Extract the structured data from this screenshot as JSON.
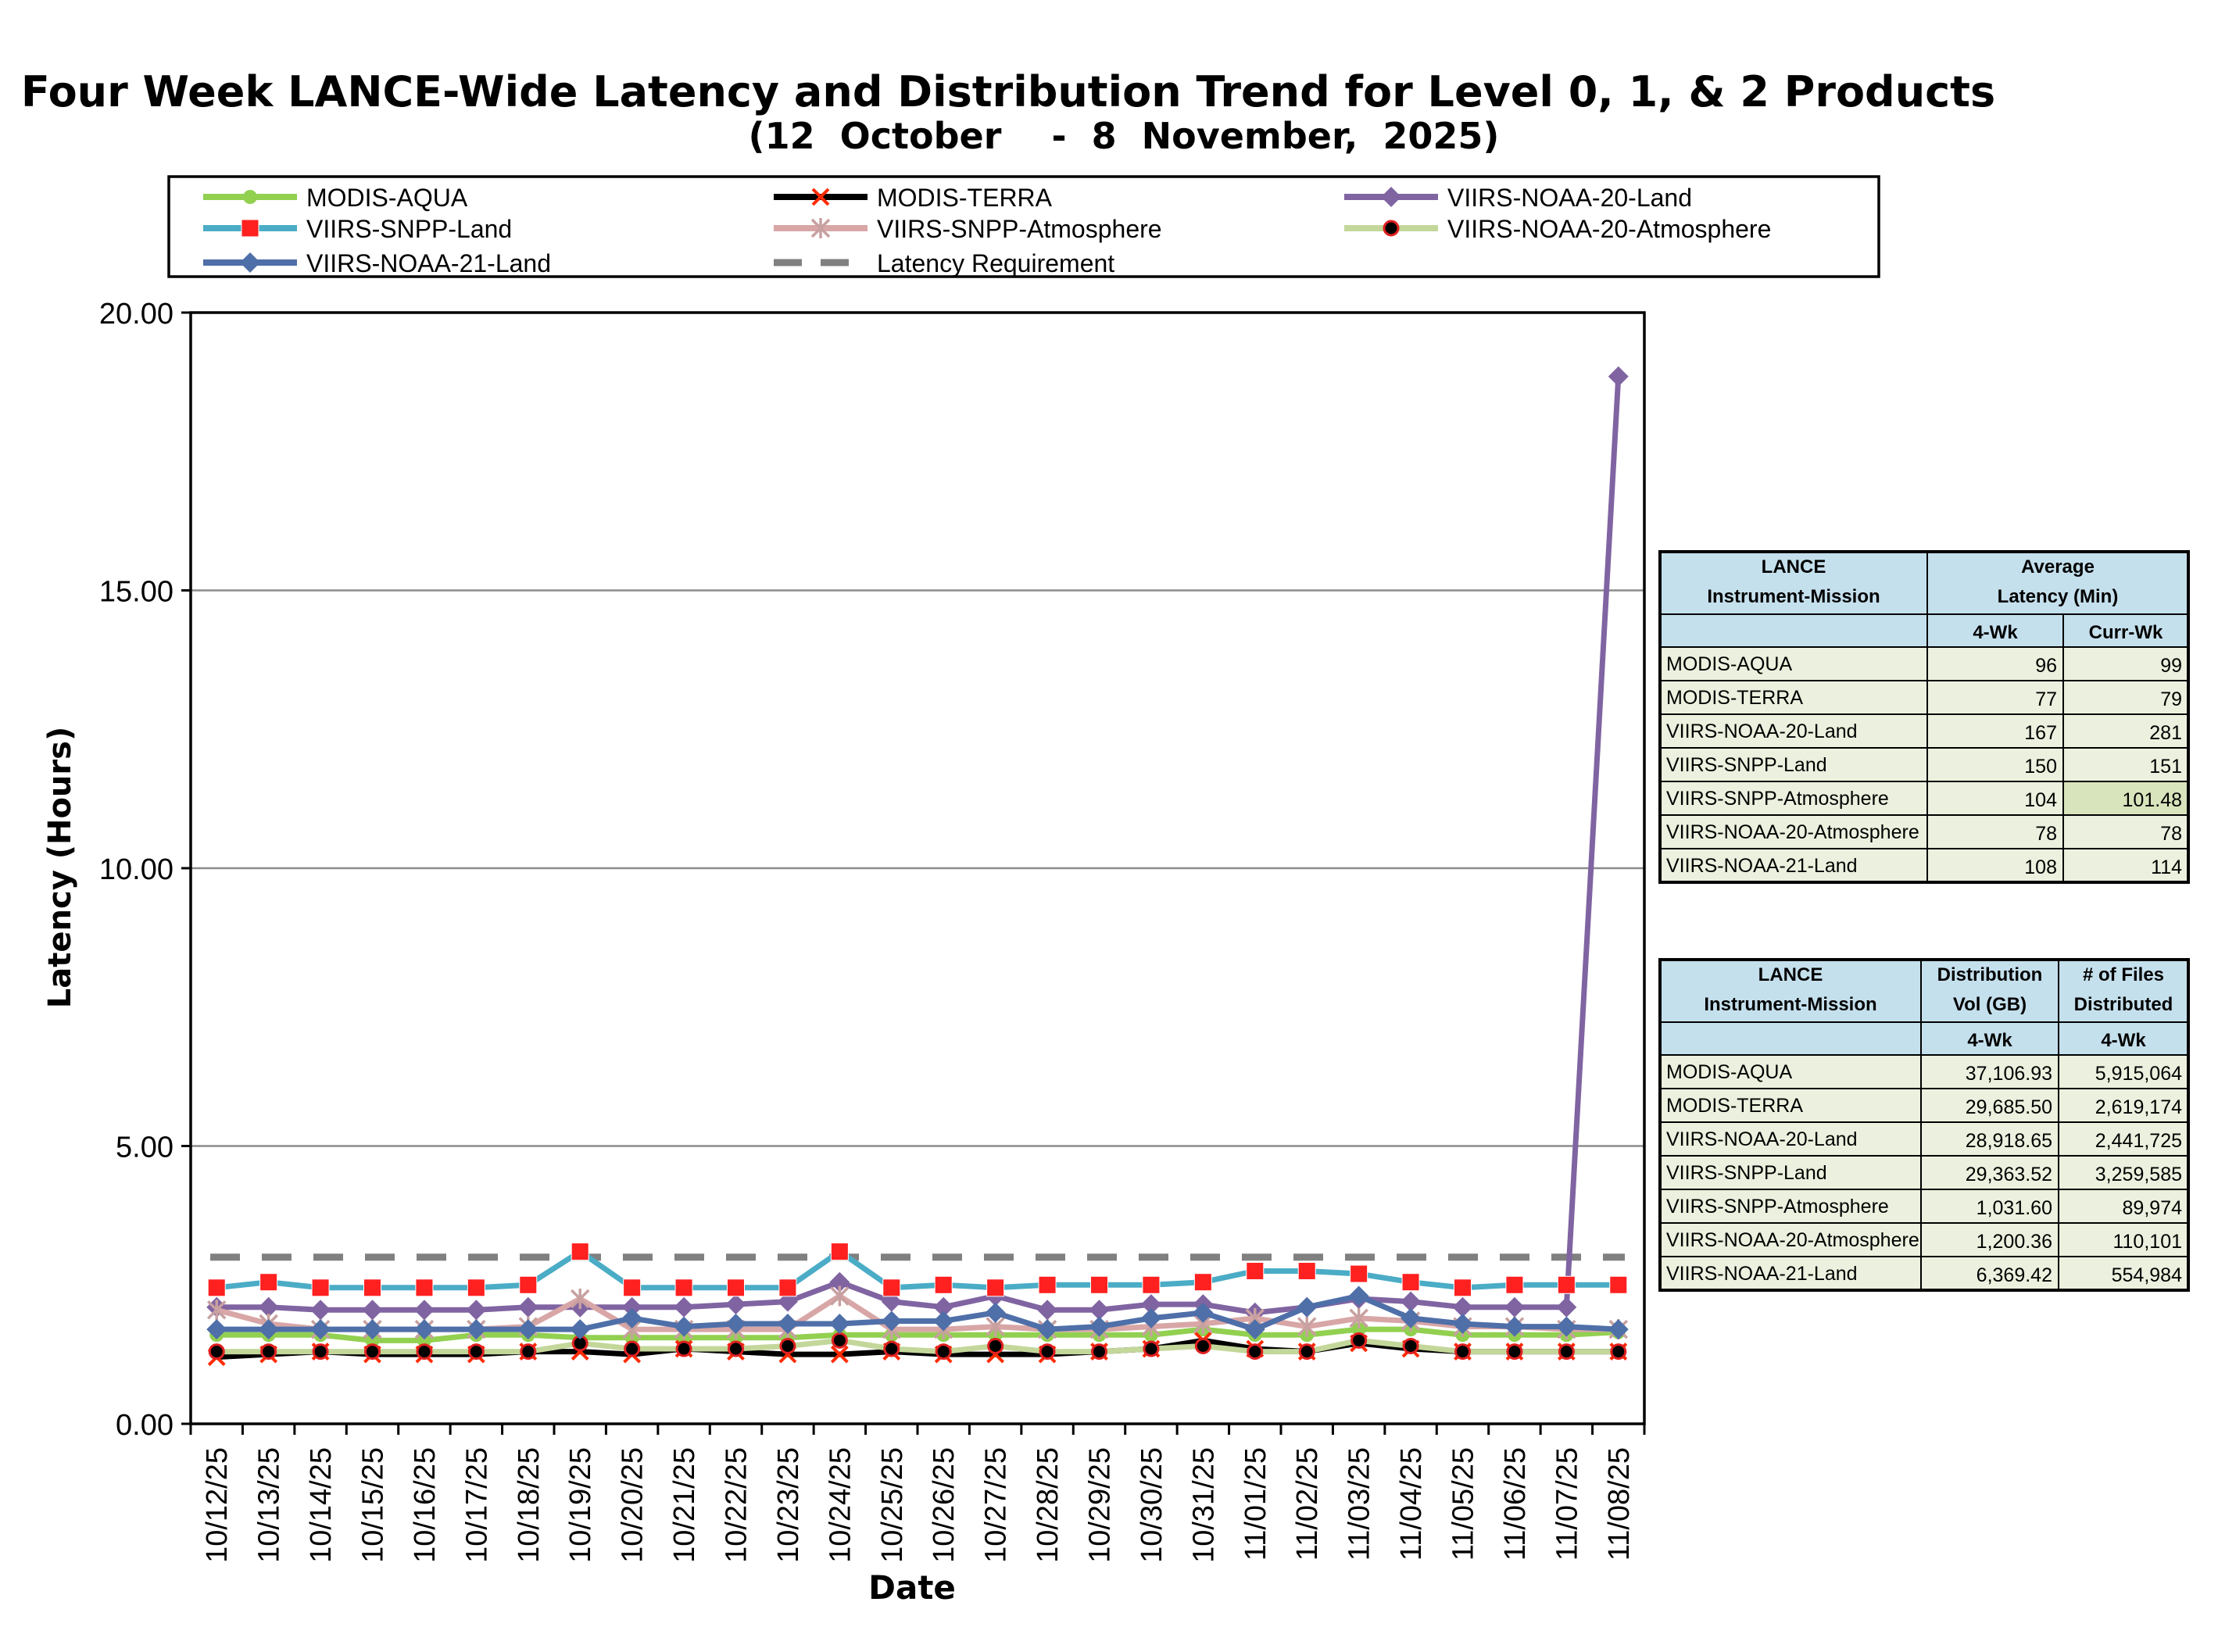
{
  "chart_data": {
    "type": "line",
    "title": "Four Week LANCE-Wide Latency and Distribution Trend for Level 0, 1, & 2 Products",
    "subtitle": "(12  October    -  8  November,  2025)",
    "xlabel": "Date",
    "ylabel": "Latency (Hours)",
    "ylim": [
      0,
      20
    ],
    "yticks": [
      "0.00",
      "5.00",
      "10.00",
      "15.00",
      "20.00"
    ],
    "grid": "horizontal",
    "legend_position": "top",
    "x": [
      "10/12/25",
      "10/13/25",
      "10/14/25",
      "10/15/25",
      "10/16/25",
      "10/17/25",
      "10/18/25",
      "10/19/25",
      "10/20/25",
      "10/21/25",
      "10/22/25",
      "10/23/25",
      "10/24/25",
      "10/25/25",
      "10/26/25",
      "10/27/25",
      "10/28/25",
      "10/29/25",
      "10/30/25",
      "10/31/25",
      "11/01/25",
      "11/02/25",
      "11/03/25",
      "11/04/25",
      "11/05/25",
      "11/06/25",
      "11/07/25",
      "11/08/25"
    ],
    "series": [
      {
        "name": "MODIS-AQUA",
        "color": "#92d050",
        "marker": "circle",
        "values": [
          1.6,
          1.6,
          1.6,
          1.5,
          1.5,
          1.6,
          1.6,
          1.55,
          1.55,
          1.55,
          1.55,
          1.55,
          1.6,
          1.6,
          1.6,
          1.6,
          1.6,
          1.6,
          1.6,
          1.7,
          1.6,
          1.6,
          1.7,
          1.7,
          1.6,
          1.6,
          1.6,
          1.65
        ]
      },
      {
        "name": "MODIS-TERRA",
        "color": "#000000",
        "marker": "x",
        "values": [
          1.2,
          1.25,
          1.3,
          1.25,
          1.25,
          1.25,
          1.3,
          1.3,
          1.25,
          1.35,
          1.3,
          1.25,
          1.25,
          1.3,
          1.25,
          1.25,
          1.25,
          1.3,
          1.35,
          1.5,
          1.35,
          1.3,
          1.45,
          1.35,
          1.3,
          1.3,
          1.3,
          1.3
        ]
      },
      {
        "name": "VIIRS-NOAA-20-Land",
        "color": "#8064a2",
        "marker": "diamond",
        "values": [
          2.1,
          2.1,
          2.05,
          2.05,
          2.05,
          2.05,
          2.1,
          2.1,
          2.1,
          2.1,
          2.15,
          2.2,
          2.55,
          2.2,
          2.1,
          2.3,
          2.05,
          2.05,
          2.15,
          2.15,
          2.0,
          2.1,
          2.25,
          2.2,
          2.1,
          2.1,
          2.1,
          18.85
        ]
      },
      {
        "name": "VIIRS-SNPP-Land",
        "color": "#4bacc6",
        "marker": "square",
        "values": [
          2.45,
          2.55,
          2.45,
          2.45,
          2.45,
          2.45,
          2.5,
          3.1,
          2.45,
          2.45,
          2.45,
          2.45,
          3.1,
          2.45,
          2.5,
          2.45,
          2.5,
          2.5,
          2.5,
          2.55,
          2.75,
          2.75,
          2.7,
          2.55,
          2.45,
          2.5,
          2.5,
          2.5
        ]
      },
      {
        "name": "VIIRS-SNPP-Atmosphere",
        "color": "#d8a6a6",
        "marker": "star",
        "values": [
          2.05,
          1.8,
          1.7,
          1.7,
          1.7,
          1.7,
          1.75,
          2.25,
          1.7,
          1.7,
          1.7,
          1.7,
          2.3,
          1.7,
          1.7,
          1.75,
          1.7,
          1.7,
          1.75,
          1.8,
          1.9,
          1.75,
          1.9,
          1.85,
          1.75,
          1.75,
          1.7,
          1.7
        ]
      },
      {
        "name": "VIIRS-NOAA-20-Atmosphere",
        "color": "#c4d79b",
        "marker": "dot",
        "values": [
          1.3,
          1.3,
          1.3,
          1.3,
          1.3,
          1.3,
          1.3,
          1.45,
          1.35,
          1.35,
          1.35,
          1.4,
          1.5,
          1.35,
          1.3,
          1.4,
          1.3,
          1.3,
          1.35,
          1.4,
          1.3,
          1.3,
          1.5,
          1.4,
          1.3,
          1.3,
          1.3,
          1.3
        ]
      },
      {
        "name": "VIIRS-NOAA-21-Land",
        "color": "#4f6fa8",
        "marker": "diamond",
        "values": [
          1.7,
          1.7,
          1.7,
          1.7,
          1.7,
          1.7,
          1.7,
          1.7,
          1.9,
          1.75,
          1.8,
          1.8,
          1.8,
          1.85,
          1.85,
          2.0,
          1.7,
          1.75,
          1.9,
          2.0,
          1.7,
          2.1,
          2.3,
          1.9,
          1.8,
          1.75,
          1.75,
          1.7
        ]
      },
      {
        "name": "Latency Requirement",
        "color": "#808080",
        "marker": "none",
        "dashed": true,
        "values": [
          3,
          3,
          3,
          3,
          3,
          3,
          3,
          3,
          3,
          3,
          3,
          3,
          3,
          3,
          3,
          3,
          3,
          3,
          3,
          3,
          3,
          3,
          3,
          3,
          3,
          3,
          3,
          3
        ]
      }
    ]
  },
  "tables": {
    "latency": {
      "header": [
        "LANCE",
        "Instrument-Mission",
        "Average",
        "Latency (Min)",
        "4-Wk",
        "Curr-Wk"
      ],
      "rows": [
        [
          "MODIS-AQUA",
          "96",
          "99"
        ],
        [
          "MODIS-TERRA",
          "77",
          "79"
        ],
        [
          "VIIRS-NOAA-20-Land",
          "167",
          "281"
        ],
        [
          "VIIRS-SNPP-Land",
          "150",
          "151"
        ],
        [
          "VIIRS-SNPP-Atmosphere",
          "104",
          "101.48"
        ],
        [
          "VIIRS-NOAA-20-Atmosphere",
          "78",
          "78"
        ],
        [
          "VIIRS-NOAA-21-Land",
          "108",
          "114"
        ]
      ]
    },
    "distribution": {
      "header": [
        "LANCE",
        "Instrument-Mission",
        "Distribution",
        "Vol (GB)",
        "# of Files",
        "Distributed",
        "4-Wk",
        "4-Wk"
      ],
      "rows": [
        [
          "MODIS-AQUA",
          "37,106.93",
          "5,915,064"
        ],
        [
          "MODIS-TERRA",
          "29,685.50",
          "2,619,174"
        ],
        [
          "VIIRS-NOAA-20-Land",
          "28,918.65",
          "2,441,725"
        ],
        [
          "VIIRS-SNPP-Land",
          "29,363.52",
          "3,259,585"
        ],
        [
          "VIIRS-SNPP-Atmosphere",
          "1,031.60",
          "89,974"
        ],
        [
          "VIIRS-NOAA-20-Atmosphere",
          "1,200.36",
          "110,101"
        ],
        [
          "VIIRS-NOAA-21-Land",
          "6,369.42",
          "554,984"
        ]
      ]
    },
    "colors": {
      "header_bg": "#c5e0ed",
      "row_bg": "#ebf1de",
      "highlight_bg": "#d8e4bc"
    }
  }
}
